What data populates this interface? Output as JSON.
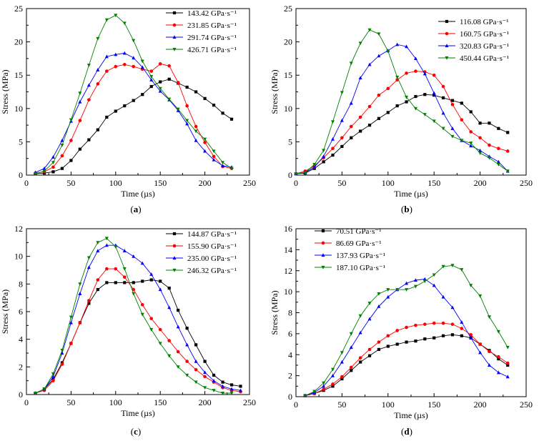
{
  "chart_data": [
    {
      "type": "line",
      "panel_label": "(a)",
      "xlabel": "Time (µs)",
      "ylabel": "Stress (MPa)",
      "xlim": [
        0,
        250
      ],
      "ylim": [
        0,
        25
      ],
      "xticks": [
        0,
        50,
        100,
        150,
        200,
        250
      ],
      "yticks": [
        0,
        5,
        10,
        15,
        20,
        25
      ],
      "legend": "top-right",
      "series": [
        {
          "name": "143.42 GPa·s⁻¹",
          "color": "#000000",
          "marker": "square",
          "x": [
            10,
            20,
            30,
            40,
            50,
            60,
            70,
            80,
            90,
            100,
            110,
            120,
            130,
            140,
            150,
            160,
            170,
            180,
            190,
            200,
            210,
            220,
            230
          ],
          "y": [
            0.2,
            0.3,
            0.5,
            1.0,
            2.2,
            3.9,
            5.3,
            6.8,
            8.7,
            9.6,
            10.4,
            11.2,
            12.1,
            13.3,
            14.0,
            14.4,
            13.8,
            13.2,
            12.5,
            11.5,
            10.5,
            9.3,
            8.4
          ]
        },
        {
          "name": "231.85 GPa·s⁻¹",
          "color": "#ff0000",
          "marker": "circle",
          "x": [
            10,
            20,
            30,
            40,
            50,
            60,
            70,
            80,
            90,
            100,
            110,
            120,
            130,
            140,
            150,
            160,
            170,
            180,
            190,
            200,
            210,
            220,
            230
          ],
          "y": [
            0.3,
            0.5,
            1.2,
            2.9,
            5.2,
            8.2,
            11.3,
            13.7,
            15.6,
            16.3,
            16.6,
            16.3,
            15.9,
            15.6,
            16.7,
            16.4,
            13.9,
            10.4,
            7.3,
            4.9,
            2.8,
            1.3,
            1.0
          ]
        },
        {
          "name": "291.74 GPa·s⁻¹",
          "color": "#0000ff",
          "marker": "triangle-up",
          "x": [
            10,
            20,
            30,
            40,
            50,
            60,
            70,
            80,
            90,
            100,
            110,
            120,
            130,
            140,
            150,
            160,
            170,
            180,
            190,
            200,
            210,
            220,
            230
          ],
          "y": [
            0.4,
            1.0,
            2.7,
            5.2,
            8.1,
            11.0,
            13.5,
            15.8,
            17.8,
            18.1,
            18.3,
            17.6,
            16.2,
            14.3,
            12.6,
            11.3,
            9.7,
            7.7,
            5.2,
            3.6,
            2.3,
            1.4,
            1.2
          ]
        },
        {
          "name": "426.71 GPa·s⁻¹",
          "color": "#008000",
          "marker": "triangle-down",
          "x": [
            10,
            20,
            30,
            40,
            50,
            60,
            70,
            80,
            90,
            100,
            110,
            120,
            130,
            140,
            150,
            160,
            170,
            180,
            190,
            200,
            210,
            220,
            230
          ],
          "y": [
            0.2,
            0.6,
            1.9,
            4.5,
            8.3,
            12.3,
            16.5,
            20.5,
            23.3,
            24.0,
            22.8,
            20.2,
            17.1,
            14.8,
            13.0,
            11.4,
            9.9,
            8.2,
            6.6,
            5.4,
            3.6,
            1.9,
            1.0
          ]
        }
      ]
    },
    {
      "type": "line",
      "panel_label": "(b)",
      "xlabel": "Time (µs)",
      "ylabel": "Stress (MPa)",
      "xlim": [
        0,
        250
      ],
      "ylim": [
        0,
        25
      ],
      "xticks": [
        0,
        50,
        100,
        150,
        200,
        250
      ],
      "yticks": [
        0,
        5,
        10,
        15,
        20,
        25
      ],
      "legend": "top-right",
      "series": [
        {
          "name": "116.08 GPa·s⁻¹",
          "color": "#000000",
          "marker": "square",
          "x": [
            0,
            10,
            20,
            30,
            40,
            50,
            60,
            70,
            80,
            90,
            100,
            110,
            120,
            130,
            140,
            150,
            160,
            170,
            180,
            190,
            200,
            210,
            220,
            230
          ],
          "y": [
            0.2,
            0.3,
            1.0,
            2.0,
            3.0,
            4.3,
            5.6,
            6.6,
            7.5,
            8.5,
            9.4,
            10.4,
            11.0,
            11.8,
            12.1,
            12.0,
            11.6,
            11.2,
            10.8,
            9.5,
            7.8,
            7.8,
            7.0,
            6.4
          ]
        },
        {
          "name": "160.75 GPa·s⁻¹",
          "color": "#ff0000",
          "marker": "circle",
          "x": [
            0,
            10,
            20,
            30,
            40,
            50,
            60,
            70,
            80,
            90,
            100,
            110,
            120,
            130,
            140,
            150,
            160,
            170,
            180,
            190,
            200,
            210,
            220,
            230
          ],
          "y": [
            0.2,
            0.6,
            1.4,
            2.6,
            4.0,
            5.6,
            7.3,
            8.7,
            10.3,
            12.0,
            13.0,
            14.3,
            15.3,
            15.6,
            15.5,
            15.0,
            13.3,
            10.6,
            8.3,
            6.5,
            5.6,
            4.5,
            4.0,
            3.6
          ]
        },
        {
          "name": "320.83 GPa·s⁻¹",
          "color": "#0000ff",
          "marker": "triangle-up",
          "x": [
            0,
            10,
            20,
            30,
            40,
            50,
            60,
            70,
            80,
            90,
            100,
            110,
            120,
            130,
            140,
            150,
            160,
            170,
            180,
            190,
            200,
            210,
            220,
            230
          ],
          "y": [
            0.2,
            0.4,
            1.2,
            2.8,
            5.4,
            8.2,
            10.8,
            14.6,
            16.6,
            17.9,
            18.7,
            19.6,
            19.3,
            17.5,
            15.2,
            12.3,
            9.3,
            7.0,
            5.2,
            4.4,
            3.7,
            2.8,
            2.0,
            0.6
          ]
        },
        {
          "name": "450.44 GPa·s⁻¹",
          "color": "#008000",
          "marker": "triangle-down",
          "x": [
            0,
            10,
            20,
            30,
            40,
            50,
            60,
            70,
            80,
            90,
            100,
            110,
            120,
            130,
            140,
            150,
            160,
            170,
            180,
            190,
            200,
            210,
            220,
            230
          ],
          "y": [
            0.2,
            0.4,
            1.6,
            3.7,
            8.0,
            12.4,
            16.8,
            19.8,
            21.8,
            21.2,
            18.6,
            14.7,
            11.7,
            10.0,
            9.1,
            8.1,
            7.0,
            5.8,
            5.2,
            4.8,
            3.3,
            2.6,
            1.6,
            0.6
          ]
        }
      ]
    },
    {
      "type": "line",
      "panel_label": "(c)",
      "xlabel": "Time (µs)",
      "ylabel": "Stress (MPa)",
      "xlim": [
        0,
        250
      ],
      "ylim": [
        0,
        12
      ],
      "xticks": [
        0,
        50,
        100,
        150,
        200,
        250
      ],
      "yticks": [
        0,
        2,
        4,
        6,
        8,
        10,
        12
      ],
      "legend": "top-right",
      "series": [
        {
          "name": "144.87 GPa·s⁻¹",
          "color": "#000000",
          "marker": "square",
          "x": [
            10,
            20,
            30,
            40,
            50,
            60,
            70,
            80,
            90,
            100,
            110,
            120,
            130,
            140,
            150,
            160,
            170,
            180,
            190,
            200,
            210,
            220,
            230,
            240
          ],
          "y": [
            0.1,
            0.4,
            1.1,
            2.3,
            3.7,
            5.2,
            6.6,
            7.6,
            8.1,
            8.1,
            8.1,
            8.1,
            8.2,
            8.3,
            8.2,
            7.7,
            6.1,
            4.8,
            3.6,
            2.4,
            1.4,
            0.9,
            0.7,
            0.6
          ]
        },
        {
          "name": "155.90 GPa·s⁻¹",
          "color": "#ff0000",
          "marker": "circle",
          "x": [
            10,
            20,
            30,
            40,
            50,
            60,
            70,
            80,
            90,
            100,
            110,
            120,
            130,
            140,
            150,
            160,
            170,
            180,
            190,
            200,
            210,
            220,
            230,
            240
          ],
          "y": [
            0.1,
            0.3,
            1.0,
            2.2,
            3.7,
            5.2,
            6.8,
            8.3,
            9.1,
            9.1,
            8.5,
            7.6,
            6.5,
            5.5,
            4.7,
            3.9,
            3.1,
            2.4,
            1.8,
            1.3,
            0.9,
            0.5,
            0.3,
            0.2
          ]
        },
        {
          "name": "235.00 GPa·s⁻¹",
          "color": "#0000ff",
          "marker": "triangle-up",
          "x": [
            10,
            20,
            30,
            40,
            50,
            60,
            70,
            80,
            90,
            100,
            110,
            120,
            130,
            140,
            150,
            160,
            170,
            180,
            190,
            200,
            210,
            220,
            230,
            240
          ],
          "y": [
            0.1,
            0.4,
            1.3,
            3.0,
            5.2,
            7.3,
            9.2,
            10.4,
            10.8,
            10.8,
            10.4,
            10.0,
            9.5,
            8.7,
            7.6,
            6.3,
            4.9,
            3.6,
            2.4,
            1.6,
            1.0,
            0.6,
            0.4,
            0.3
          ]
        },
        {
          "name": "246.32 GPa·s⁻¹",
          "color": "#008000",
          "marker": "triangle-down",
          "x": [
            10,
            20,
            30,
            40,
            50,
            60,
            70,
            80,
            90,
            100,
            110,
            120,
            130,
            140,
            150,
            160,
            170,
            180,
            190,
            200,
            210,
            220,
            230
          ],
          "y": [
            0.1,
            0.4,
            1.5,
            3.2,
            5.6,
            8.0,
            9.9,
            11.0,
            11.3,
            10.7,
            9.1,
            7.3,
            5.8,
            4.7,
            3.7,
            2.8,
            2.0,
            1.4,
            0.9,
            0.5,
            0.3,
            0.1,
            0.1
          ]
        }
      ]
    },
    {
      "type": "line",
      "panel_label": "(d)",
      "xlabel": "Time (µs)",
      "ylabel": "Stress (MPa)",
      "xlim": [
        0,
        250
      ],
      "ylim": [
        0,
        16
      ],
      "xticks": [
        0,
        50,
        100,
        150,
        200,
        250
      ],
      "yticks": [
        0,
        2,
        4,
        6,
        8,
        10,
        12,
        14,
        16
      ],
      "legend": "top-left",
      "series": [
        {
          "name": "70.51 GPa·s⁻¹",
          "color": "#000000",
          "marker": "square",
          "x": [
            10,
            20,
            30,
            40,
            50,
            60,
            70,
            80,
            90,
            100,
            110,
            120,
            130,
            140,
            150,
            160,
            170,
            180,
            190,
            200,
            210,
            220,
            230
          ],
          "y": [
            0.1,
            0.3,
            0.6,
            1.0,
            1.7,
            2.5,
            3.3,
            3.9,
            4.5,
            4.8,
            5.0,
            5.2,
            5.3,
            5.5,
            5.6,
            5.8,
            5.9,
            5.8,
            5.6,
            5.0,
            4.4,
            3.6,
            3.0
          ]
        },
        {
          "name": "86.69 GPa·s⁻¹",
          "color": "#ff0000",
          "marker": "circle",
          "x": [
            10,
            20,
            30,
            40,
            50,
            60,
            70,
            80,
            90,
            100,
            110,
            120,
            130,
            140,
            150,
            160,
            170,
            180,
            190,
            200,
            210,
            220,
            230
          ],
          "y": [
            0.1,
            0.3,
            0.7,
            1.2,
            1.9,
            2.8,
            3.7,
            4.5,
            5.2,
            5.8,
            6.3,
            6.6,
            6.8,
            6.9,
            7.0,
            7.0,
            6.9,
            6.5,
            5.9,
            5.0,
            4.3,
            3.8,
            3.2
          ]
        },
        {
          "name": "137.93 GPa·s⁻¹",
          "color": "#0000ff",
          "marker": "triangle-up",
          "x": [
            10,
            20,
            30,
            40,
            50,
            60,
            70,
            80,
            90,
            100,
            110,
            120,
            130,
            140,
            150,
            160,
            170,
            180,
            190,
            200,
            210,
            220,
            230
          ],
          "y": [
            0.1,
            0.4,
            1.0,
            2.0,
            3.3,
            4.7,
            6.1,
            7.4,
            8.6,
            9.5,
            10.2,
            10.8,
            11.1,
            11.2,
            10.6,
            9.5,
            8.5,
            7.1,
            5.6,
            4.2,
            3.0,
            2.3,
            1.9
          ]
        },
        {
          "name": "187.10 GPa·s⁻¹",
          "color": "#008000",
          "marker": "triangle-down",
          "x": [
            10,
            20,
            30,
            40,
            50,
            60,
            70,
            80,
            90,
            100,
            110,
            120,
            130,
            140,
            150,
            160,
            170,
            180,
            190,
            200,
            210,
            220,
            230
          ],
          "y": [
            0.1,
            0.5,
            1.3,
            2.6,
            4.2,
            6.0,
            7.7,
            8.9,
            9.8,
            10.2,
            10.2,
            10.2,
            10.5,
            11.0,
            11.6,
            12.4,
            12.5,
            12.1,
            10.6,
            9.6,
            7.6,
            6.2,
            4.7
          ]
        }
      ]
    }
  ]
}
